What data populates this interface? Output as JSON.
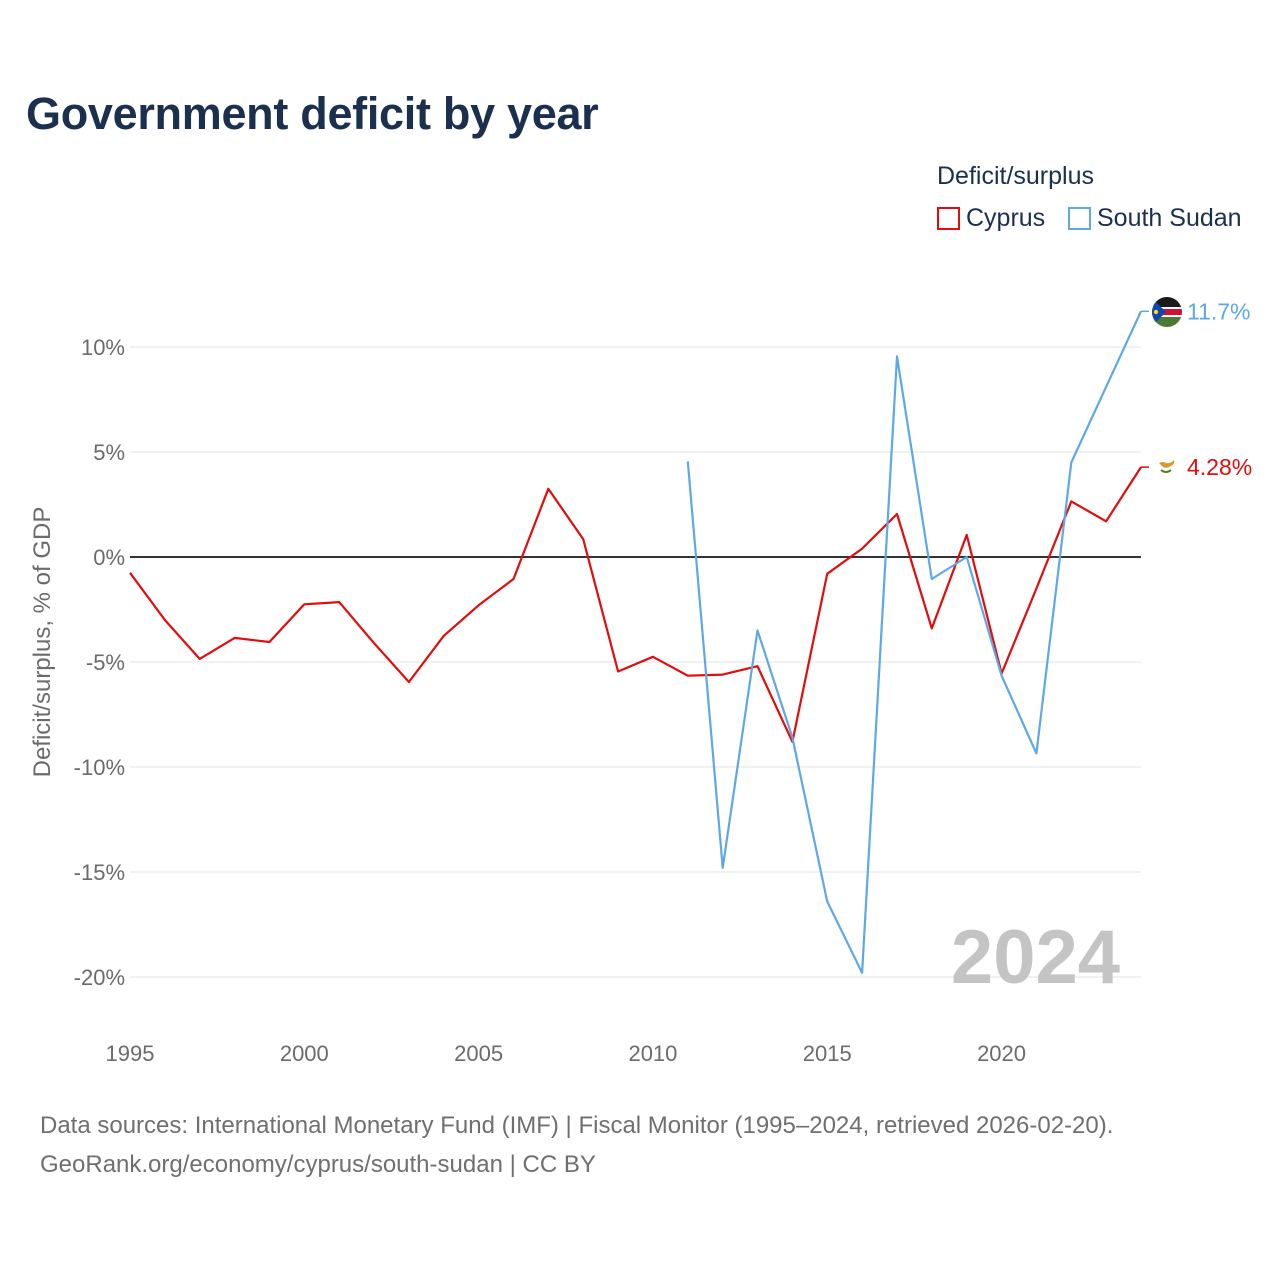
{
  "title": "Government deficit by year",
  "legend": {
    "title": "Deficit/surplus",
    "items": [
      {
        "label": "Cyprus",
        "color": "#e30b0b"
      },
      {
        "label": "South Sudan",
        "color": "#5ea8e6"
      }
    ]
  },
  "year_watermark": "2024",
  "footer": {
    "sources": "Data sources: International Monetary Fund (IMF) | Fiscal Monitor (1995–2024, retrieved 2026-02-20).",
    "credit": "GeoRank.org/economy/cyprus/south-sudan | CC BY"
  },
  "chart_data": {
    "type": "line",
    "title": "Government deficit by year",
    "xlabel": "",
    "ylabel": "Deficit/surplus, % of GDP",
    "xlim": [
      1995,
      2024
    ],
    "ylim": [
      -21,
      12
    ],
    "x_ticks": [
      1995,
      2000,
      2005,
      2010,
      2015,
      2020
    ],
    "x_tick_labels": [
      "1995",
      "2000",
      "2005",
      "2010",
      "2015",
      "2020"
    ],
    "y_ticks": [
      10,
      5,
      0,
      -5,
      -10,
      -15,
      -20
    ],
    "y_tick_labels": [
      "10%",
      "5%",
      "0%",
      "-5%",
      "-10%",
      "-15%",
      "-20%"
    ],
    "grid": true,
    "zero_line": true,
    "legend_position": "top-right",
    "series": [
      {
        "name": "Cyprus",
        "color": "#e30b0b",
        "end_label": "4.28%",
        "x": [
          1995,
          1996,
          1997,
          1998,
          1999,
          2000,
          2001,
          2002,
          2003,
          2004,
          2005,
          2006,
          2007,
          2008,
          2009,
          2010,
          2011,
          2012,
          2013,
          2014,
          2015,
          2016,
          2017,
          2018,
          2019,
          2020,
          2021,
          2022,
          2023,
          2024
        ],
        "values": [
          -0.75,
          -3.0,
          -4.85,
          -3.85,
          -4.05,
          -2.25,
          -2.15,
          -4.1,
          -5.95,
          -3.75,
          -2.3,
          -1.05,
          3.25,
          0.85,
          -5.45,
          -4.75,
          -5.65,
          -5.6,
          -5.2,
          -8.8,
          -0.8,
          0.4,
          2.05,
          -3.4,
          1.05,
          -5.55,
          -1.5,
          2.65,
          1.7,
          4.28
        ]
      },
      {
        "name": "South Sudan",
        "color": "#5ea8e6",
        "end_label": "11.7%",
        "x": [
          2011,
          2012,
          2013,
          2014,
          2015,
          2016,
          2017,
          2018,
          2019,
          2020,
          2021,
          2022,
          2023,
          2024
        ],
        "values": [
          4.55,
          -14.8,
          -3.5,
          -8.6,
          -16.4,
          -19.8,
          9.55,
          -1.05,
          0.0,
          -5.65,
          -9.35,
          4.5,
          8.1,
          11.7
        ]
      }
    ]
  }
}
